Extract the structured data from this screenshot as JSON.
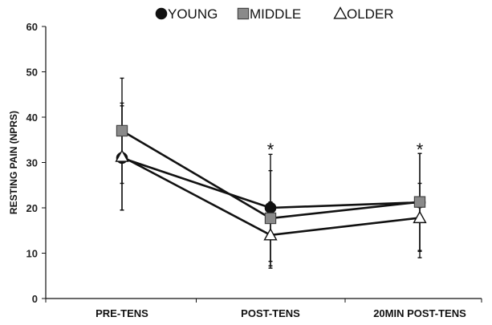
{
  "chart_data": {
    "type": "line",
    "categories": [
      "PRE-TENS",
      "POST-TENS",
      "20MIN POST-TENS"
    ],
    "ylabel": "RESTING PAIN (NPRS)",
    "ylim": [
      0,
      60
    ],
    "yticks": [
      0,
      10,
      20,
      30,
      40,
      50,
      60
    ],
    "legend_position": "top",
    "grid": false,
    "series": [
      {
        "name": "YOUNG",
        "marker": "circle",
        "fill": "#111111",
        "values": [
          31,
          20,
          21.2
        ],
        "err_upper": [
          11.5,
          11.8,
          10.8
        ],
        "err_lower": [
          11.5,
          11.8,
          10.8
        ]
      },
      {
        "name": "MIDDLE",
        "marker": "square",
        "fill": "#8a8a8a",
        "values": [
          37,
          17.7,
          21.3
        ],
        "err_upper": [
          11.6,
          10.5,
          10.7
        ],
        "err_lower": [
          11.6,
          10.5,
          10.7
        ]
      },
      {
        "name": "OLDER",
        "marker": "triangle",
        "fill": "#ffffff",
        "values": [
          31.3,
          14,
          17.8
        ],
        "err_upper": [
          11.8,
          7.3,
          7.6
        ],
        "err_lower": [
          11.8,
          7.3,
          8.8
        ]
      }
    ],
    "annotations": [
      {
        "text": "*",
        "category": "POST-TENS",
        "y": 34
      },
      {
        "text": "*",
        "category": "20MIN POST-TENS",
        "y": 34
      }
    ]
  }
}
